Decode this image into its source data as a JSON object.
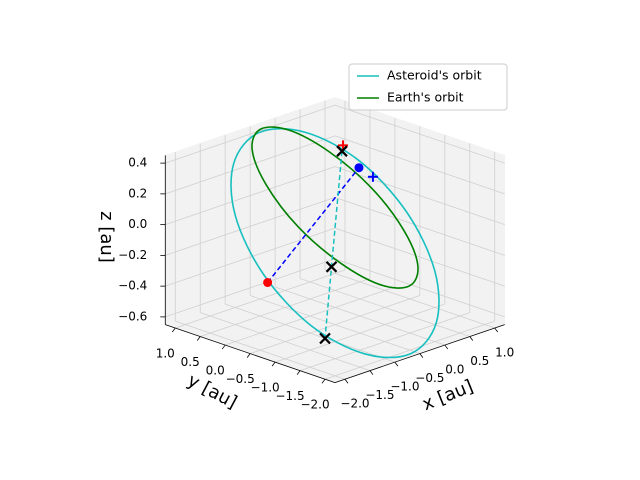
{
  "chart_data": {
    "type": "line3d",
    "xlabel": "x [au]",
    "ylabel": "y [au]",
    "zlabel": "z [au]",
    "xlim": [
      -2.2,
      1.2
    ],
    "ylim": [
      -2.2,
      1.2
    ],
    "zlim": [
      -0.65,
      0.45
    ],
    "xticks": [
      {
        "value": -2,
        "label": "−2.0"
      },
      {
        "value": -1.5,
        "label": "−1.5"
      },
      {
        "value": -1,
        "label": "−1.0"
      },
      {
        "value": -0.5,
        "label": "−0.5"
      },
      {
        "value": 0,
        "label": "0.0"
      },
      0.5,
      {
        "value": 1,
        "label": "1.0"
      }
    ],
    "yticks": [
      {
        "value": -2,
        "label": "−2.0"
      },
      {
        "value": -1.5,
        "label": "−1.5"
      },
      {
        "value": -1,
        "label": "−1.0"
      },
      {
        "value": -0.5,
        "label": "−0.5"
      },
      {
        "value": 0,
        "label": "0.0"
      },
      0.5,
      {
        "value": 1,
        "label": "1.0"
      }
    ],
    "zticks": [
      {
        "value": -0.6,
        "label": "−0.6"
      },
      {
        "value": -0.4,
        "label": "−0.4"
      },
      {
        "value": -0.2,
        "label": "−0.2"
      },
      {
        "value": 0,
        "label": "0.0"
      },
      0.2,
      0.4
    ],
    "grid": true,
    "legend": "upper right",
    "series": [
      {
        "name": "Asteroid's orbit",
        "color": "#17bfbf",
        "x": [
          -0.03,
          0.22,
          0.28,
          0.13,
          -0.19,
          -0.59,
          -0.97,
          -1.22,
          -1.28,
          -1.13,
          -0.81,
          -0.41
        ],
        "y": [
          0.57,
          -0.26,
          -1.15,
          -1.87,
          -2.22,
          -2.11,
          -1.57,
          -0.74,
          0.15,
          0.87,
          1.22,
          1.11
        ],
        "z": [
          0.43,
          0.31,
          0.07,
          -0.22,
          -0.48,
          -0.65,
          -0.67,
          -0.55,
          -0.31,
          -0.02,
          0.24,
          0.41
        ]
      },
      {
        "name": "Earth's orbit",
        "color": "#008000",
        "x": [
          0.47,
          0.3,
          0.04,
          -0.22,
          -0.43,
          -0.52,
          -0.47,
          -0.3,
          -0.04,
          0.22,
          0.43,
          0.52
        ],
        "y": [
          -0.91,
          -0.44,
          0.15,
          0.7,
          1.06,
          1.14,
          0.91,
          0.44,
          -0.15,
          -0.7,
          -1.06,
          -1.14
        ],
        "z": [
          -0.1,
          0.14,
          0.34,
          0.45,
          0.44,
          0.31,
          0.1,
          -0.14,
          -0.34,
          -0.45,
          -0.44,
          -0.31
        ]
      }
    ],
    "dashed_lines": [
      {
        "color": "#0000ff",
        "x": [
          -1.25,
          0.28
        ],
        "y": [
          0.1,
          -0.2
        ],
        "z": [
          -0.36,
          0.25
        ]
      },
      {
        "color": "#17bfbf",
        "x": [
          0.1,
          -0.6
        ],
        "y": [
          -0.04,
          -0.4
        ],
        "z": [
          0.36,
          -0.74
        ]
      }
    ],
    "markers": [
      {
        "marker": "o",
        "color": "#ff0000",
        "x": -1.25,
        "y": 0.1,
        "z": -0.36
      },
      {
        "marker": "o",
        "color": "#0000ff",
        "x": 0.28,
        "y": -0.2,
        "z": 0.25
      },
      {
        "marker": "+",
        "color": "#0000ff",
        "x": 0.38,
        "y": -0.38,
        "z": 0.2
      },
      {
        "marker": "+",
        "color": "#ff0000",
        "x": 0.1,
        "y": -0.06,
        "z": 0.4
      },
      {
        "marker": "x",
        "color": "#000000",
        "x": 0.1,
        "y": -0.04,
        "z": 0.36
      },
      {
        "marker": "x",
        "color": "#000000",
        "x": -0.33,
        "y": -0.26,
        "z": -0.32
      },
      {
        "marker": "x",
        "color": "#000000",
        "x": -0.6,
        "y": -0.4,
        "z": -0.74
      }
    ]
  }
}
